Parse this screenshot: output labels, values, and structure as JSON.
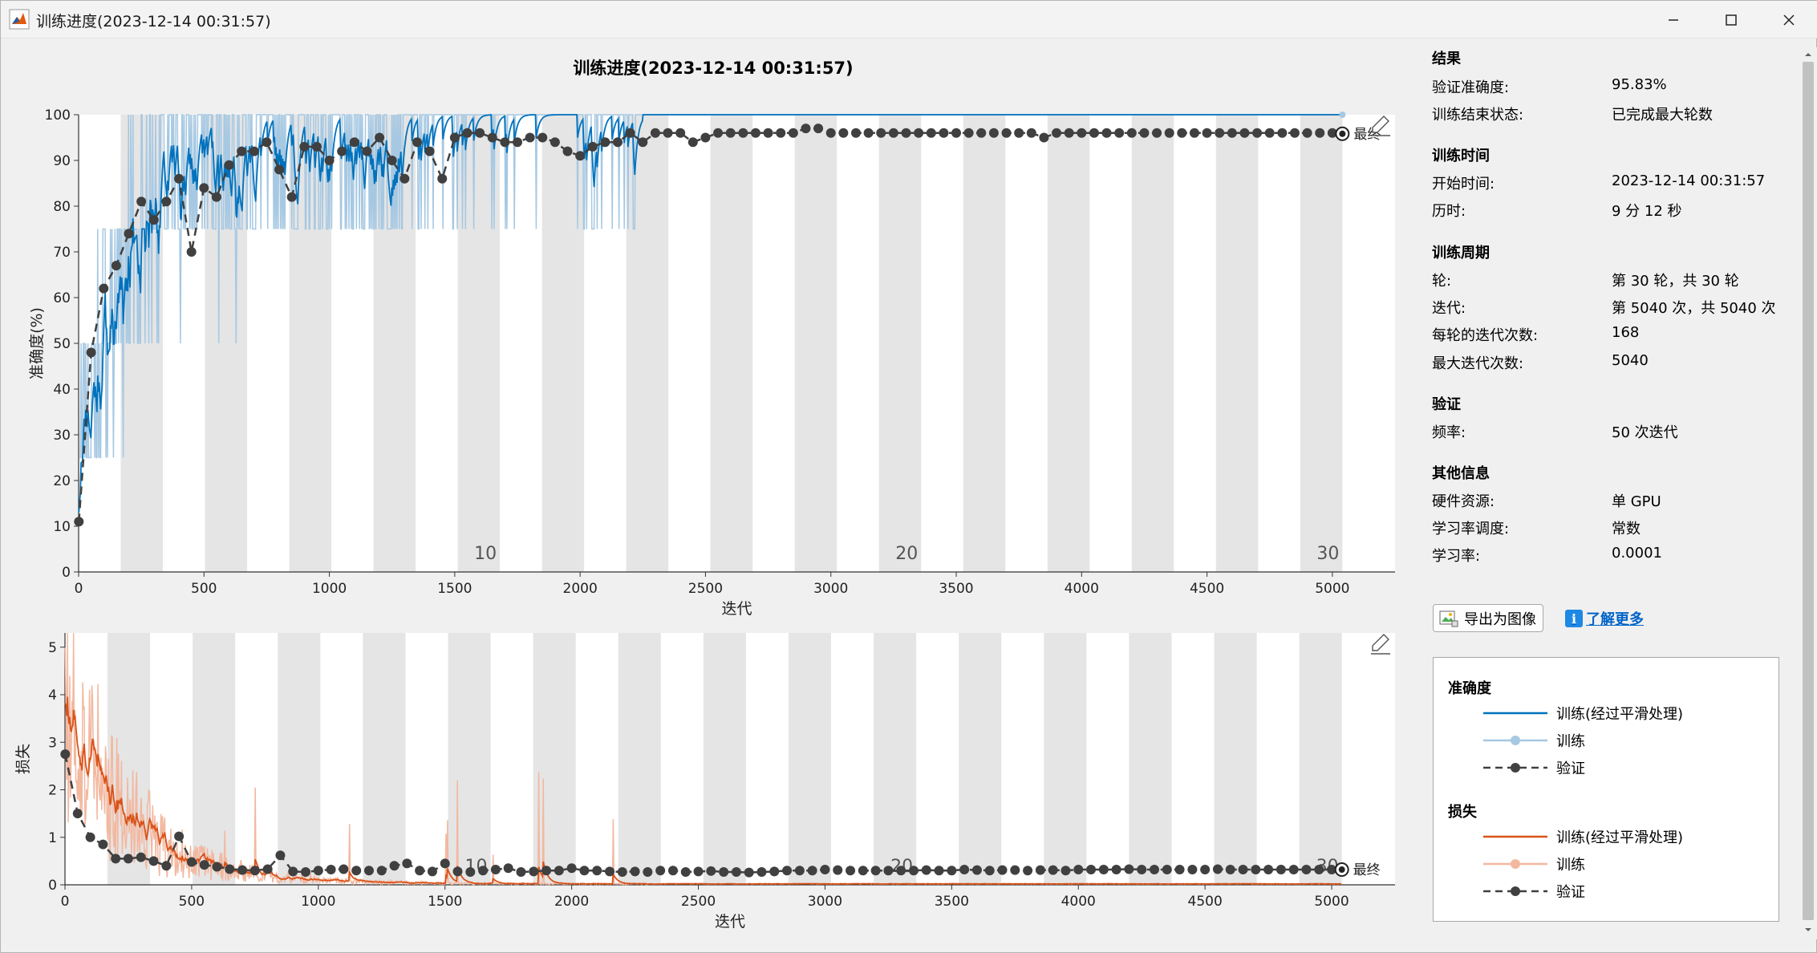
{
  "window": {
    "title": "训练进度(2023-12-14 00:31:57)"
  },
  "plot_title": "训练进度(2023-12-14 00:31:57)",
  "results": {
    "heading": "结果",
    "rows": [
      {
        "k": "验证准确度:",
        "v": "95.83%"
      },
      {
        "k": "训练结束状态:",
        "v": "已完成最大轮数"
      }
    ]
  },
  "time": {
    "heading": "训练时间",
    "rows": [
      {
        "k": "开始时间:",
        "v": "2023-12-14 00:31:57"
      },
      {
        "k": "历时:",
        "v": "9 分 12 秒"
      }
    ]
  },
  "cycle": {
    "heading": "训练周期",
    "rows": [
      {
        "k": "轮:",
        "v": "第 30 轮，共 30 轮"
      },
      {
        "k": "迭代:",
        "v": "第 5040 次，共 5040 次"
      },
      {
        "k": "每轮的迭代次数:",
        "v": "168"
      },
      {
        "k": "最大迭代次数:",
        "v": "5040"
      }
    ]
  },
  "validation": {
    "heading": "验证",
    "rows": [
      {
        "k": "频率:",
        "v": "50 次迭代"
      }
    ]
  },
  "other": {
    "heading": "其他信息",
    "rows": [
      {
        "k": "硬件资源:",
        "v": "单 GPU"
      },
      {
        "k": "学习率调度:",
        "v": "常数"
      },
      {
        "k": "学习率:",
        "v": "0.0001"
      }
    ]
  },
  "buttons": {
    "export": "导出为图像",
    "learn_more": "了解更多"
  },
  "legend": {
    "acc_heading": "准确度",
    "loss_heading": "损失",
    "items": [
      "训练(经过平滑处理)",
      "训练",
      "验证"
    ]
  },
  "colors": {
    "acc_smooth": "#0072bd",
    "acc_raw": "#a6c8e2",
    "loss_smooth": "#d95319",
    "loss_raw": "#f2b8a0",
    "validation": "#404040",
    "epoch_band": "#e5e5e5"
  },
  "chart_data": [
    {
      "type": "line",
      "name": "accuracy",
      "xlabel": "迭代",
      "ylabel": "准确度(%)",
      "xlim": [
        0,
        5250
      ],
      "ylim": [
        0,
        100
      ],
      "xticks": [
        0,
        500,
        1000,
        1500,
        2000,
        2500,
        3000,
        3500,
        4000,
        4500,
        5000
      ],
      "yticks": [
        0,
        10,
        20,
        30,
        40,
        50,
        60,
        70,
        80,
        90,
        100
      ],
      "iterations_per_epoch": 168,
      "epochs": 30,
      "epoch_labels": [
        "10",
        "20",
        "30"
      ],
      "final_label": "最终",
      "final_train": 100,
      "final_validation": 95.83,
      "validation": {
        "x": [
          1,
          50,
          100,
          150,
          200,
          250,
          300,
          350,
          400,
          450,
          500,
          550,
          600,
          650,
          700,
          750,
          800,
          850,
          900,
          950,
          1000,
          1050,
          1100,
          1150,
          1200,
          1250,
          1300,
          1350,
          1400,
          1450,
          1500,
          1550,
          1600,
          1650,
          1700,
          1750,
          1800,
          1850,
          1900,
          1950,
          2000,
          2050,
          2100,
          2150,
          2200,
          2250,
          2300,
          2350,
          2400,
          2450,
          2500,
          2550,
          2600,
          2650,
          2700,
          2750,
          2800,
          2850,
          2900,
          2950,
          3000,
          3050,
          3100,
          3150,
          3200,
          3250,
          3300,
          3350,
          3400,
          3450,
          3500,
          3550,
          3600,
          3650,
          3700,
          3750,
          3800,
          3850,
          3900,
          3950,
          4000,
          4050,
          4100,
          4150,
          4200,
          4250,
          4300,
          4350,
          4400,
          4450,
          4500,
          4550,
          4600,
          4650,
          4700,
          4750,
          4800,
          4850,
          4900,
          4950,
          5000,
          5040
        ],
        "y": [
          11,
          48,
          62,
          67,
          74,
          81,
          77,
          81,
          86,
          70,
          84,
          82,
          89,
          92,
          92,
          94,
          88,
          82,
          93,
          93,
          90,
          92,
          94,
          92,
          95,
          90,
          86,
          94,
          92,
          86,
          95,
          96,
          96,
          95,
          94,
          94,
          95,
          95,
          94,
          92,
          91,
          93,
          94,
          94,
          96,
          94,
          96,
          96,
          96,
          94,
          95,
          96,
          96,
          96,
          96,
          96,
          96,
          96,
          97,
          97,
          96,
          96,
          96,
          96,
          96,
          96,
          96,
          96,
          96,
          96,
          96,
          96,
          96,
          96,
          96,
          96,
          96,
          95,
          96,
          96,
          96,
          96,
          96,
          96,
          96,
          96,
          96,
          96,
          96,
          96,
          96,
          96,
          96,
          96,
          96,
          96,
          96,
          96,
          96,
          96,
          96,
          95.83
        ]
      }
    },
    {
      "type": "line",
      "name": "loss",
      "xlabel": "迭代",
      "ylabel": "损失",
      "xlim": [
        0,
        5250
      ],
      "ylim": [
        0,
        5.3
      ],
      "xticks": [
        0,
        500,
        1000,
        1500,
        2000,
        2500,
        3000,
        3500,
        4000,
        4500,
        5000
      ],
      "yticks": [
        0,
        1,
        2,
        3,
        4,
        5
      ],
      "iterations_per_epoch": 168,
      "epochs": 30,
      "epoch_labels": [
        "10",
        "20",
        "30"
      ],
      "final_label": "最终",
      "final_train": 0.01,
      "final_validation": 0.32,
      "validation": {
        "x": [
          1,
          50,
          100,
          150,
          200,
          250,
          300,
          350,
          400,
          450,
          500,
          550,
          600,
          650,
          700,
          750,
          800,
          850,
          900,
          950,
          1000,
          1050,
          1100,
          1150,
          1200,
          1250,
          1300,
          1350,
          1400,
          1450,
          1500,
          1550,
          1600,
          1650,
          1700,
          1750,
          1800,
          1850,
          1900,
          1950,
          2000,
          2050,
          2100,
          2150,
          2200,
          2250,
          2300,
          2350,
          2400,
          2450,
          2500,
          2550,
          2600,
          2650,
          2700,
          2750,
          2800,
          2850,
          2900,
          2950,
          3000,
          3050,
          3100,
          3150,
          3200,
          3250,
          3300,
          3350,
          3400,
          3450,
          3500,
          3550,
          3600,
          3650,
          3700,
          3750,
          3800,
          3850,
          3900,
          3950,
          4000,
          4050,
          4100,
          4150,
          4200,
          4250,
          4300,
          4350,
          4400,
          4450,
          4500,
          4550,
          4600,
          4650,
          4700,
          4750,
          4800,
          4850,
          4900,
          4950,
          5000,
          5040
        ],
        "y": [
          2.75,
          1.5,
          1.0,
          0.85,
          0.55,
          0.55,
          0.58,
          0.5,
          0.4,
          1.02,
          0.48,
          0.42,
          0.38,
          0.33,
          0.31,
          0.3,
          0.33,
          0.62,
          0.28,
          0.27,
          0.3,
          0.32,
          0.33,
          0.3,
          0.3,
          0.3,
          0.4,
          0.45,
          0.3,
          0.28,
          0.45,
          0.28,
          0.27,
          0.3,
          0.32,
          0.35,
          0.27,
          0.28,
          0.3,
          0.3,
          0.35,
          0.3,
          0.3,
          0.28,
          0.27,
          0.28,
          0.27,
          0.3,
          0.3,
          0.27,
          0.28,
          0.29,
          0.27,
          0.27,
          0.26,
          0.27,
          0.28,
          0.3,
          0.3,
          0.3,
          0.32,
          0.31,
          0.3,
          0.3,
          0.3,
          0.3,
          0.3,
          0.3,
          0.31,
          0.3,
          0.3,
          0.32,
          0.31,
          0.3,
          0.31,
          0.31,
          0.3,
          0.31,
          0.31,
          0.3,
          0.32,
          0.32,
          0.32,
          0.32,
          0.33,
          0.32,
          0.32,
          0.32,
          0.32,
          0.32,
          0.32,
          0.33,
          0.32,
          0.32,
          0.32,
          0.32,
          0.32,
          0.32,
          0.32,
          0.32,
          0.32,
          0.32
        ]
      }
    }
  ]
}
